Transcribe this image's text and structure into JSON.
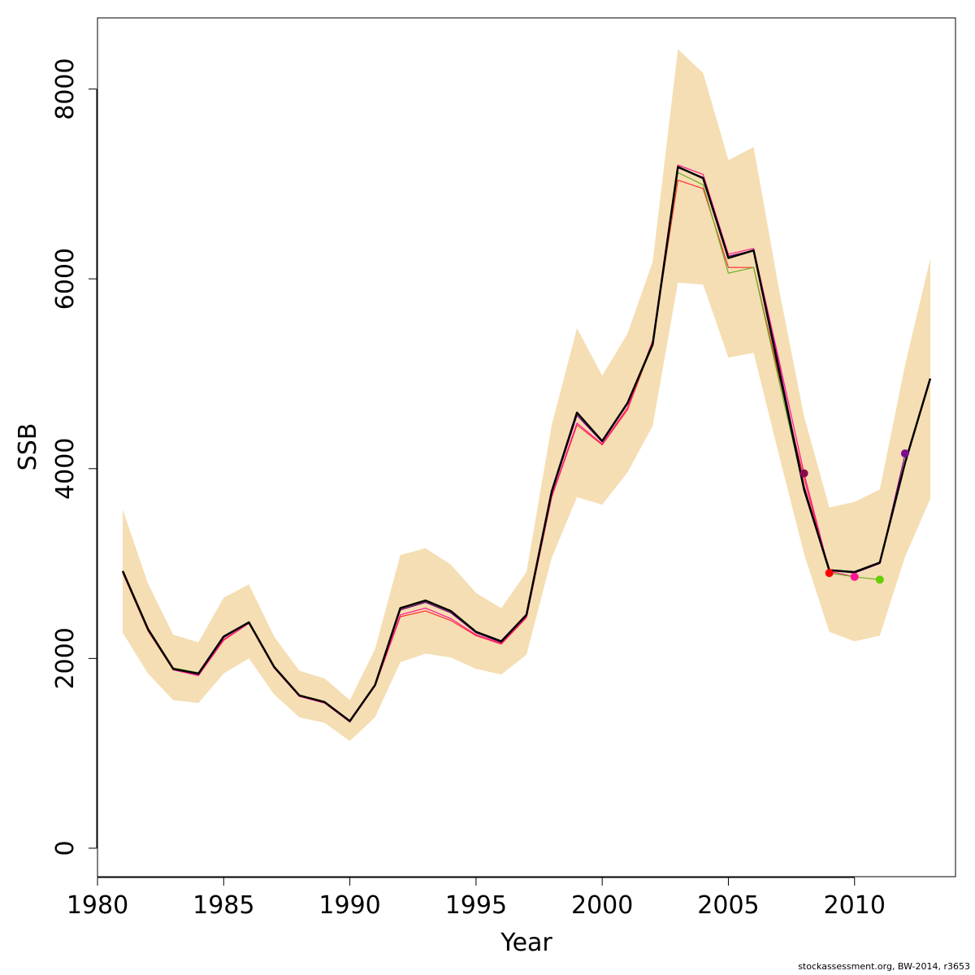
{
  "chart_data": {
    "type": "line",
    "title": "",
    "xlabel": "Year",
    "ylabel": "SSB",
    "xlim": [
      1980,
      2014
    ],
    "ylim": [
      -300,
      8750
    ],
    "x_ticks": [
      1980,
      1985,
      1990,
      1995,
      2000,
      2005,
      2010
    ],
    "y_ticks": [
      0,
      2000,
      4000,
      6000,
      8000
    ],
    "grid": false,
    "legend": "none",
    "band": {
      "color": "#f5deb3",
      "x": [
        1981,
        1982,
        1983,
        1984,
        1985,
        1986,
        1987,
        1988,
        1989,
        1990,
        1991,
        1992,
        1993,
        1994,
        1995,
        1996,
        1997,
        1998,
        1999,
        2000,
        2001,
        2002,
        2003,
        2004,
        2005,
        2006,
        2007,
        2008,
        2009,
        2010,
        2011,
        2012,
        2013
      ],
      "lower": [
        2270,
        1840,
        1560,
        1530,
        1840,
        2000,
        1620,
        1380,
        1320,
        1130,
        1380,
        1960,
        2050,
        2010,
        1890,
        1830,
        2040,
        3060,
        3700,
        3620,
        3960,
        4450,
        5960,
        5940,
        5170,
        5220,
        4150,
        3100,
        2280,
        2180,
        2240,
        3070,
        3680
      ],
      "upper": [
        3570,
        2790,
        2250,
        2170,
        2640,
        2780,
        2230,
        1870,
        1790,
        1560,
        2100,
        3090,
        3160,
        2990,
        2690,
        2530,
        2910,
        4460,
        5480,
        4980,
        5420,
        6180,
        8420,
        8170,
        7250,
        7390,
        5900,
        4550,
        3590,
        3650,
        3780,
        5090,
        6210
      ]
    },
    "series": [
      {
        "color": "#000000",
        "x": [
          1981,
          1982,
          1983,
          1984,
          1985,
          1986,
          1987,
          1988,
          1989,
          1990,
          1991,
          1992,
          1993,
          1994,
          1995,
          1996,
          1997,
          1998,
          1999,
          2000,
          2001,
          2002,
          2003,
          2004,
          2005,
          2006,
          2007,
          2008,
          2009,
          2010,
          2011,
          2012,
          2013
        ],
        "values": [
          2920,
          2310,
          1890,
          1840,
          2230,
          2380,
          1910,
          1610,
          1540,
          1340,
          1720,
          2530,
          2610,
          2500,
          2280,
          2180,
          2460,
          3760,
          4590,
          4290,
          4690,
          5310,
          7180,
          7060,
          6220,
          6300,
          5040,
          3780,
          2930,
          2910,
          3010,
          4060,
          4950
        ]
      },
      {
        "color": "#8b008b",
        "x": [
          1981,
          1982,
          1983,
          1984,
          1985,
          1986,
          1987,
          1988,
          1989,
          1990,
          1991,
          1992,
          1993,
          1994,
          1995,
          1996,
          1997,
          1998,
          1999,
          2000,
          2001,
          2002,
          2003,
          2004,
          2005,
          2006,
          2007,
          2008,
          2009,
          2010,
          2011,
          2012
        ],
        "values": [
          2920,
          2310,
          1890,
          1830,
          2220,
          2380,
          1910,
          1610,
          1540,
          1340,
          1720,
          2510,
          2590,
          2480,
          2270,
          2170,
          2450,
          3740,
          4560,
          4280,
          4680,
          5310,
          7170,
          7070,
          6240,
          6300,
          5100,
          3820,
          2930,
          2900,
          3000,
          4150
        ]
      },
      {
        "color": "#6ab024",
        "x": [
          1981,
          1982,
          1983,
          1984,
          1985,
          1986,
          1987,
          1988,
          1989,
          1990,
          1991,
          1992,
          1993,
          1994,
          1995,
          1996,
          1997,
          1998,
          1999,
          2000,
          2001,
          2002,
          2003,
          2004,
          2005,
          2006,
          2007,
          2008,
          2009,
          2010,
          2011
        ],
        "values": [
          2920,
          2310,
          1900,
          1850,
          2230,
          2380,
          1910,
          1610,
          1540,
          1340,
          1720,
          2520,
          2600,
          2490,
          2280,
          2180,
          2460,
          3750,
          4580,
          4290,
          4680,
          5290,
          7120,
          6990,
          6060,
          6120,
          4930,
          3780,
          2900,
          2860,
          2830
        ]
      },
      {
        "color": "#ff1493",
        "x": [
          1981,
          1982,
          1983,
          1984,
          1985,
          1986,
          1987,
          1988,
          1989,
          1990,
          1991,
          1992,
          1993,
          1994,
          1995,
          1996,
          1997,
          1998,
          1999,
          2000,
          2001,
          2002,
          2003,
          2004,
          2005,
          2006,
          2007,
          2008,
          2009,
          2010
        ],
        "values": [
          2910,
          2300,
          1880,
          1820,
          2200,
          2370,
          1900,
          1600,
          1530,
          1330,
          1710,
          2460,
          2530,
          2420,
          2250,
          2160,
          2440,
          3710,
          4480,
          4260,
          4640,
          5350,
          7200,
          7100,
          6260,
          6320,
          5150,
          3950,
          2920,
          2860
        ]
      },
      {
        "color": "#ff2a2a",
        "x": [
          1981,
          1982,
          1983,
          1984,
          1985,
          1986,
          1987,
          1988,
          1989,
          1990,
          1991,
          1992,
          1993,
          1994,
          1995,
          1996,
          1997,
          1998,
          1999,
          2000,
          2001,
          2002,
          2003,
          2004,
          2005,
          2006,
          2007,
          2008,
          2009
        ],
        "values": [
          2900,
          2290,
          1880,
          1820,
          2190,
          2370,
          1900,
          1600,
          1530,
          1330,
          1710,
          2440,
          2500,
          2400,
          2240,
          2150,
          2430,
          3700,
          4460,
          4250,
          4620,
          5320,
          7040,
          6950,
          6120,
          6120,
          4980,
          3900,
          2900
        ]
      }
    ],
    "endpoints": [
      {
        "x": 2008,
        "y": 3950,
        "color": "#8b0a50"
      },
      {
        "x": 2009,
        "y": 2900,
        "color": "#ff0000"
      },
      {
        "x": 2010,
        "y": 2860,
        "color": "#ff1493"
      },
      {
        "x": 2011,
        "y": 2830,
        "color": "#66cd00"
      },
      {
        "x": 2012,
        "y": 4160,
        "color": "#7b0d8f"
      }
    ]
  },
  "footer": "stockassessment.org, BW-2014, r3653"
}
